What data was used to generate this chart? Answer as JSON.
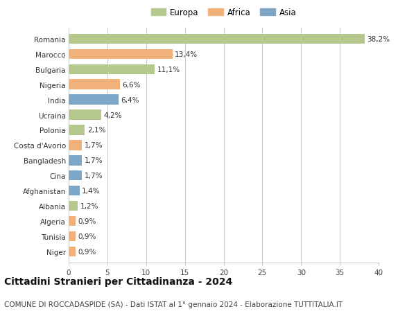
{
  "categories": [
    "Romania",
    "Marocco",
    "Bulgaria",
    "Nigeria",
    "India",
    "Ucraina",
    "Polonia",
    "Costa d'Avorio",
    "Bangladesh",
    "Cina",
    "Afghanistan",
    "Albania",
    "Algeria",
    "Tunisia",
    "Niger"
  ],
  "values": [
    38.2,
    13.4,
    11.1,
    6.6,
    6.4,
    4.2,
    2.1,
    1.7,
    1.7,
    1.7,
    1.4,
    1.2,
    0.9,
    0.9,
    0.9
  ],
  "labels": [
    "38,2%",
    "13,4%",
    "11,1%",
    "6,6%",
    "6,4%",
    "4,2%",
    "2,1%",
    "1,7%",
    "1,7%",
    "1,7%",
    "1,4%",
    "1,2%",
    "0,9%",
    "0,9%",
    "0,9%"
  ],
  "colors": [
    "#b5c98e",
    "#f0b27a",
    "#b5c98e",
    "#f0b27a",
    "#7ea6c8",
    "#b5c98e",
    "#b5c98e",
    "#f0b27a",
    "#7ea6c8",
    "#7ea6c8",
    "#7ea6c8",
    "#b5c98e",
    "#f0b27a",
    "#f0b27a",
    "#f0b27a"
  ],
  "legend_labels": [
    "Europa",
    "Africa",
    "Asia"
  ],
  "legend_colors": [
    "#b5c98e",
    "#f0b27a",
    "#7ea6c8"
  ],
  "title": "Cittadini Stranieri per Cittadinanza - 2024",
  "subtitle": "COMUNE DI ROCCADASPIDE (SA) - Dati ISTAT al 1° gennaio 2024 - Elaborazione TUTTITALIA.IT",
  "xlim": [
    0,
    40
  ],
  "xticks": [
    0,
    5,
    10,
    15,
    20,
    25,
    30,
    35,
    40
  ],
  "background_color": "#ffffff",
  "grid_color": "#cccccc",
  "bar_height": 0.65,
  "label_fontsize": 7.5,
  "tick_fontsize": 7.5,
  "title_fontsize": 10,
  "subtitle_fontsize": 7.5
}
